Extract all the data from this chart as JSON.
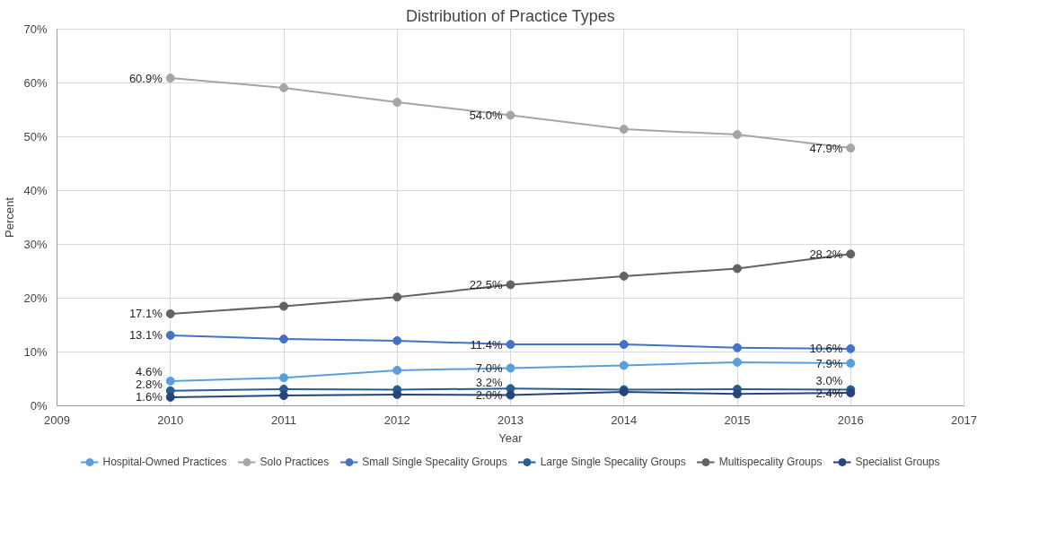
{
  "chart_data": {
    "type": "line",
    "title": "Distribution of Practice Types",
    "xlabel": "Year",
    "ylabel": "Percent",
    "x": [
      2010,
      2011,
      2012,
      2013,
      2014,
      2015,
      2016
    ],
    "xlim": [
      2009,
      2017
    ],
    "xticks": [
      2009,
      2010,
      2011,
      2012,
      2013,
      2014,
      2015,
      2016,
      2017
    ],
    "ylim": [
      0,
      70
    ],
    "yticks": [
      {
        "value": 0,
        "label": "0%"
      },
      {
        "value": 10,
        "label": "10%"
      },
      {
        "value": 20,
        "label": "20%"
      },
      {
        "value": 30,
        "label": "30%"
      },
      {
        "value": 40,
        "label": "40%"
      },
      {
        "value": 50,
        "label": "50%"
      },
      {
        "value": 60,
        "label": "60%"
      },
      {
        "value": 70,
        "label": "70%"
      }
    ],
    "grid": true,
    "legend": "bottom",
    "marker": "circle",
    "line_style": "solid",
    "series": [
      {
        "name": "Hospital-Owned Practices",
        "color": "#5a9fdc",
        "values": [
          4.6,
          5.2,
          6.6,
          7.0,
          7.5,
          8.1,
          7.9
        ],
        "value_labels": [
          "4.6%",
          null,
          null,
          "7.0%",
          null,
          null,
          "7.9%"
        ]
      },
      {
        "name": "Solo Practices",
        "color": "#a5a5a5",
        "values": [
          60.9,
          59.1,
          56.4,
          54.0,
          51.4,
          50.4,
          47.9
        ],
        "value_labels": [
          "60.9%",
          null,
          null,
          "54.0%",
          null,
          null,
          "47.9%"
        ]
      },
      {
        "name": "Small Single Specality Groups",
        "color": "#4472c4",
        "values": [
          13.1,
          12.4,
          12.1,
          11.4,
          11.4,
          10.8,
          10.6
        ],
        "value_labels": [
          "13.1%",
          null,
          null,
          "11.4%",
          null,
          null,
          "10.6%"
        ]
      },
      {
        "name": "Large Single Specality Groups",
        "color": "#255e91",
        "values": [
          2.8,
          3.1,
          3.0,
          3.2,
          3.0,
          3.1,
          3.0
        ],
        "value_labels": [
          "2.8%",
          null,
          null,
          "3.2%",
          null,
          null,
          "3.0%"
        ]
      },
      {
        "name": "Multispecality Groups",
        "color": "#636363",
        "values": [
          17.1,
          18.5,
          20.2,
          22.5,
          24.1,
          25.5,
          28.2
        ],
        "value_labels": [
          "17.1%",
          null,
          null,
          "22.5%",
          null,
          null,
          "28.2%"
        ]
      },
      {
        "name": "Specialist Groups",
        "color": "#264478",
        "values": [
          1.6,
          1.9,
          2.1,
          2.0,
          2.6,
          2.2,
          2.4
        ],
        "value_labels": [
          "1.6%",
          null,
          null,
          "2.0%",
          null,
          null,
          "2.4%"
        ]
      }
    ]
  }
}
